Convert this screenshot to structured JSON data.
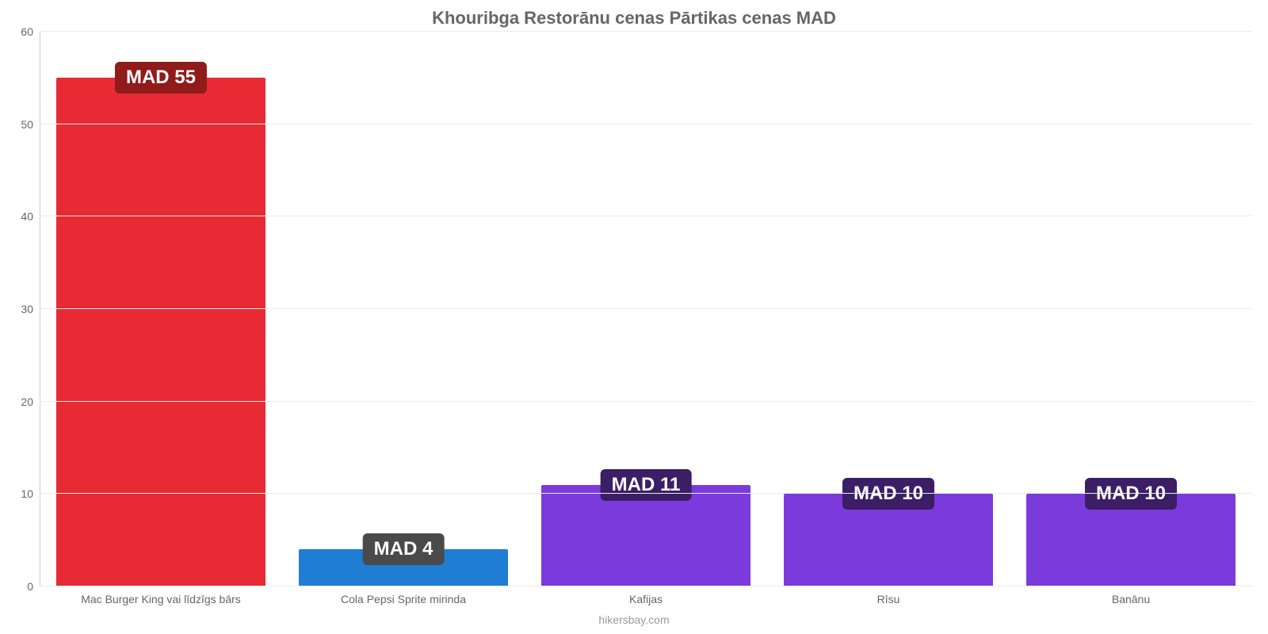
{
  "chart": {
    "type": "bar",
    "title": "Khouribga Restorānu cenas Pārtikas cenas MAD",
    "title_fontsize": 22,
    "title_color": "#666666",
    "background_color": "#ffffff",
    "grid_color": "#eaeaea",
    "axis_color": "#cccccc",
    "text_color": "#666666",
    "ylim": [
      0,
      60
    ],
    "ytick_step": 10,
    "yticks": [
      {
        "value": 0,
        "label": "0"
      },
      {
        "value": 10,
        "label": "10"
      },
      {
        "value": 20,
        "label": "20"
      },
      {
        "value": 30,
        "label": "30"
      },
      {
        "value": 40,
        "label": "40"
      },
      {
        "value": 50,
        "label": "50"
      },
      {
        "value": 60,
        "label": "60"
      }
    ],
    "bar_width_pct": 86,
    "bars": [
      {
        "category": "Mac Burger King vai līdzīgs bārs",
        "value": 55,
        "value_label": "MAD 55",
        "bar_color": "#e72a33",
        "badge_bg": "#8f1b1b",
        "badge_fontsize": 24
      },
      {
        "category": "Cola Pepsi Sprite mirinda",
        "value": 4,
        "value_label": "MAD 4",
        "bar_color": "#1f7ed3",
        "badge_bg": "#4a4a4a",
        "badge_fontsize": 24
      },
      {
        "category": "Kafijas",
        "value": 11,
        "value_label": "MAD 11",
        "bar_color": "#7b3bdc",
        "badge_bg": "#3b1e66",
        "badge_fontsize": 24
      },
      {
        "category": "Rīsu",
        "value": 10,
        "value_label": "MAD 10",
        "bar_color": "#7b3bdc",
        "badge_bg": "#3b1e66",
        "badge_fontsize": 24
      },
      {
        "category": "Banānu",
        "value": 10,
        "value_label": "MAD 10",
        "bar_color": "#7b3bdc",
        "badge_bg": "#3b1e66",
        "badge_fontsize": 24
      }
    ],
    "attribution": "hikersbay.com",
    "attribution_color": "#9a9a9a"
  }
}
